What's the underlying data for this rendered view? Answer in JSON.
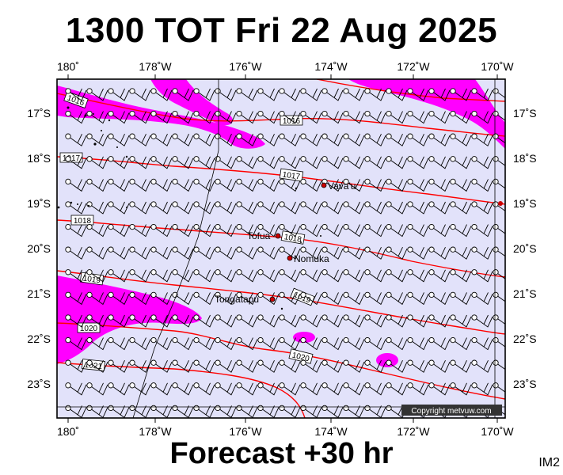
{
  "header": {
    "title": "1300 TOT Fri 22 Aug 2025",
    "subtitle": "Forecast +30 hr",
    "code": "IM2"
  },
  "axes": {
    "lon_ticks": [
      "180˚",
      "178˚W",
      "176˚W",
      "174˚W",
      "172˚W",
      "170˚W"
    ],
    "lat_ticks": [
      "17˚S",
      "18˚S",
      "19˚S",
      "20˚S",
      "21˚S",
      "22˚S",
      "23˚S"
    ]
  },
  "isobars": [
    "1016",
    "1016",
    "1017",
    "1017",
    "1018",
    "1018",
    "1019",
    "1019",
    "1020",
    "1020",
    "1021"
  ],
  "places": [
    "Vava'u",
    "Tofua",
    "Nomuka",
    "Tongatapu"
  ],
  "copyright": "Copyright metvuw.com",
  "colors": {
    "sea": "#e2e2fa",
    "wind_high": "#ff00ff",
    "isobar": "#ff0000",
    "land": "#000000"
  }
}
